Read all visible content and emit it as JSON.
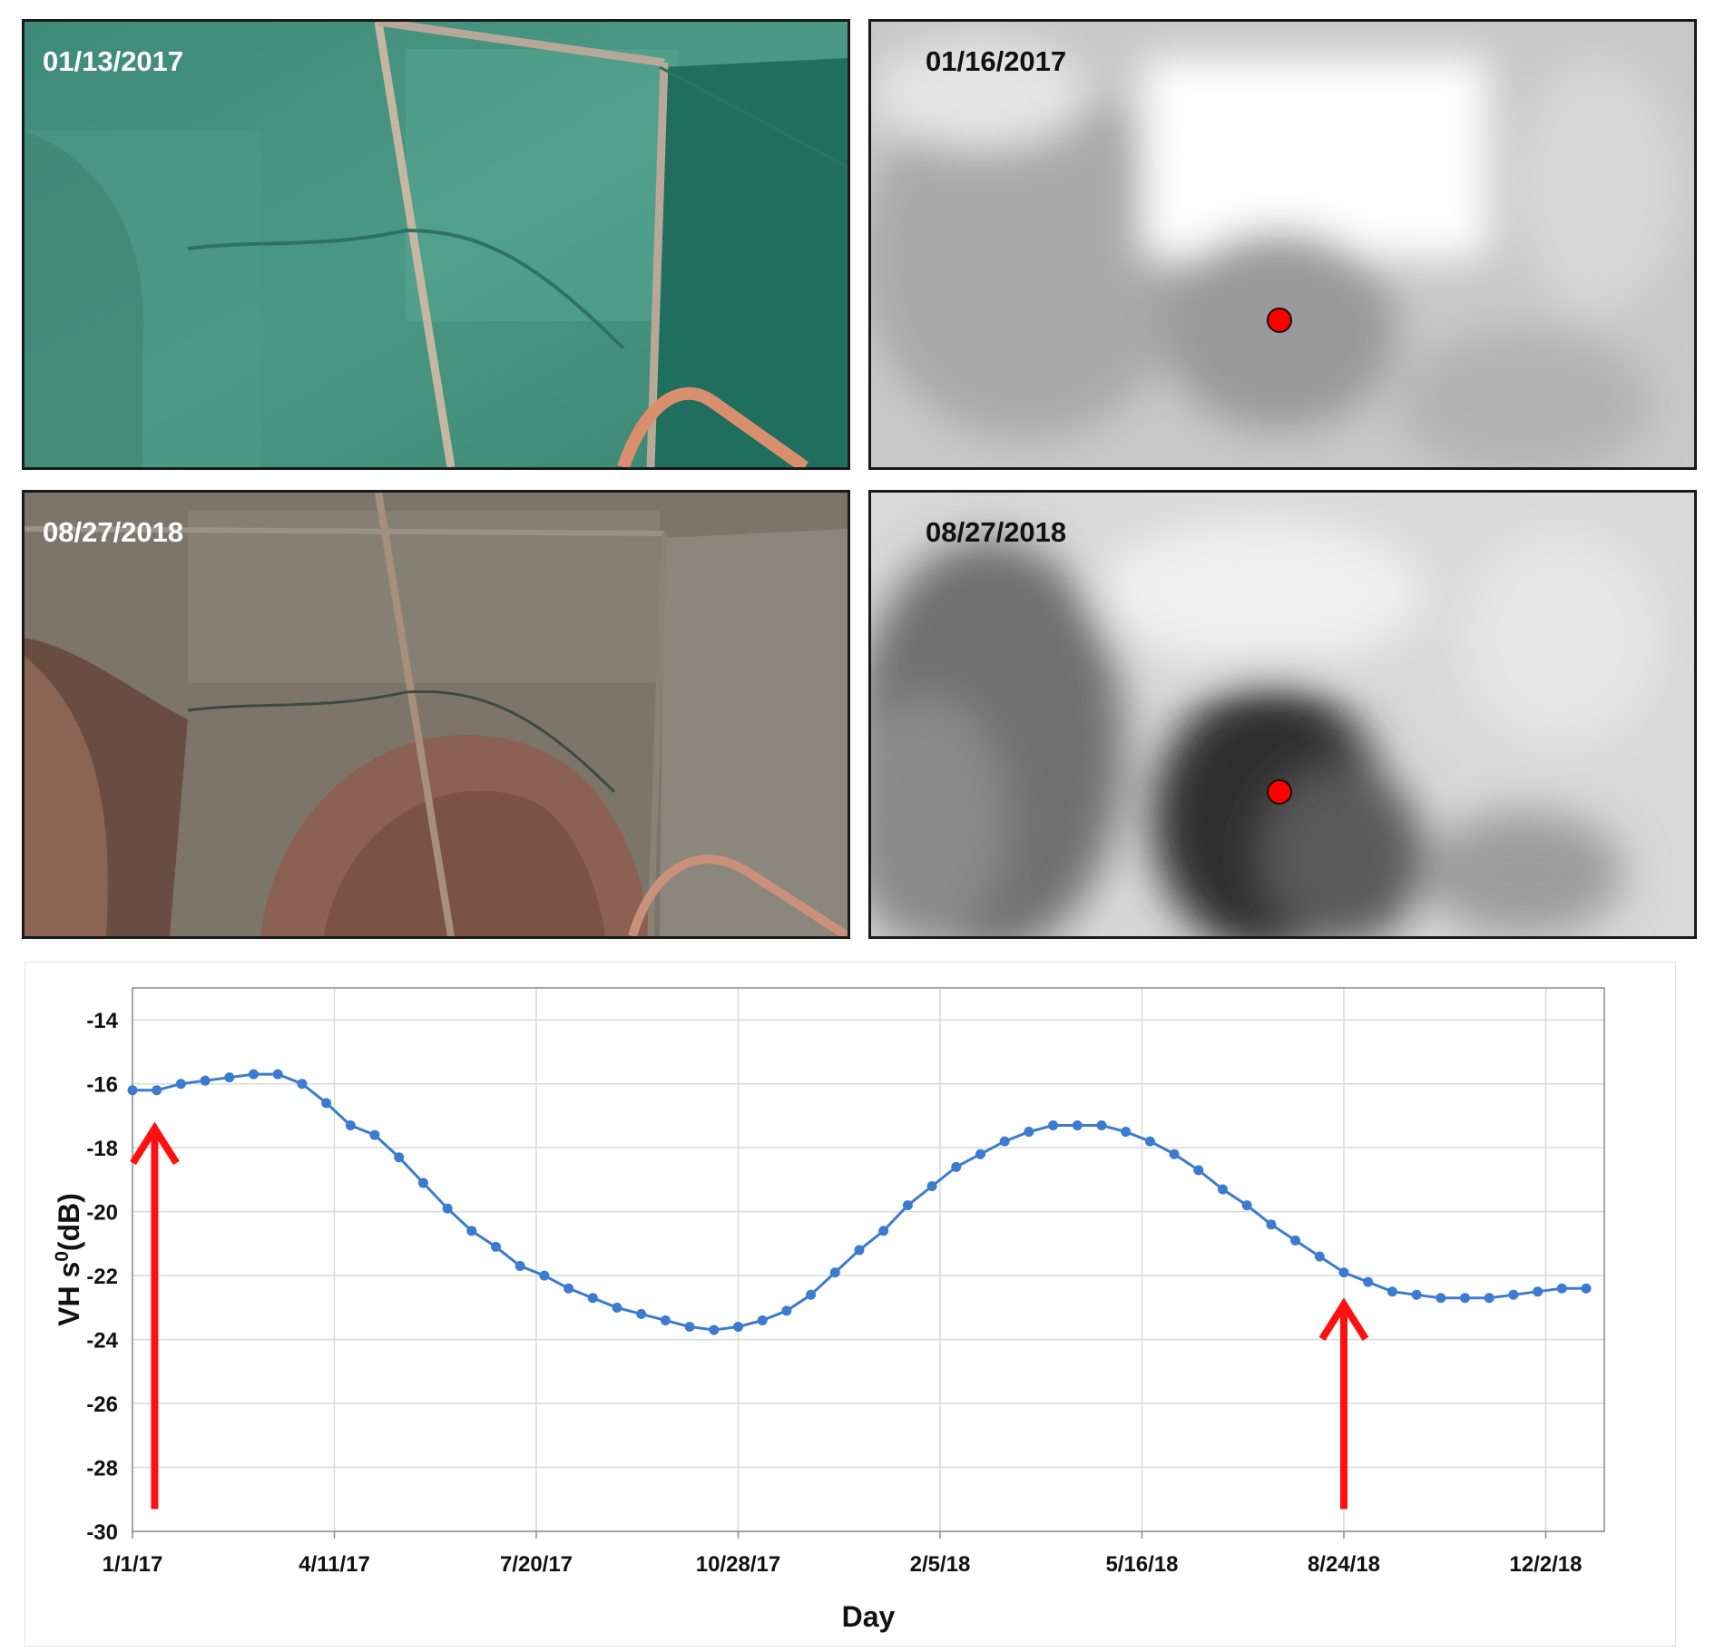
{
  "panels": {
    "optical_2017": {
      "date": "01/13/2017",
      "kind": "optical"
    },
    "sar_2017": {
      "date": "01/16/2017",
      "kind": "sar"
    },
    "optical_2018": {
      "date": "08/27/2018",
      "kind": "optical"
    },
    "sar_2018": {
      "date": "08/27/2018",
      "kind": "sar"
    }
  },
  "colors": {
    "series": "#3b7bd0",
    "arrow": "#ff1010",
    "marker": "#ff0000",
    "grid": "#d9d9d9"
  },
  "chart_data": {
    "type": "line",
    "title": "",
    "xlabel": "Day",
    "ylabel": "VH s0(dB)",
    "ylabel_base": "VH s",
    "ylabel_sup": "0",
    "ylabel_rest": "(dB)",
    "ylim": [
      -30,
      -13
    ],
    "yticks": [
      -14,
      -16,
      -18,
      -20,
      -22,
      -24,
      -26,
      -28,
      -30
    ],
    "xlim": [
      "2017-01-01",
      "2018-12-31"
    ],
    "xticks": [
      {
        "date": "2017-01-01",
        "label": "1/1/17"
      },
      {
        "date": "2017-04-11",
        "label": "4/11/17"
      },
      {
        "date": "2017-07-20",
        "label": "7/20/17"
      },
      {
        "date": "2017-10-28",
        "label": "10/28/17"
      },
      {
        "date": "2018-02-05",
        "label": "2/5/18"
      },
      {
        "date": "2018-05-16",
        "label": "5/16/18"
      },
      {
        "date": "2018-08-24",
        "label": "8/24/18"
      },
      {
        "date": "2018-12-02",
        "label": "12/2/18"
      }
    ],
    "grid": true,
    "legend": "none",
    "series": [
      {
        "x": [
          "2017-01-01",
          "2017-01-13",
          "2017-01-25",
          "2017-02-06",
          "2017-02-18",
          "2017-03-02",
          "2017-03-14",
          "2017-03-26",
          "2017-04-07",
          "2017-04-19",
          "2017-05-01",
          "2017-05-13",
          "2017-05-25",
          "2017-06-06",
          "2017-06-18",
          "2017-06-30",
          "2017-07-12",
          "2017-07-24",
          "2017-08-05",
          "2017-08-17",
          "2017-08-29",
          "2017-09-10",
          "2017-09-22",
          "2017-10-04",
          "2017-10-16",
          "2017-10-28",
          "2017-11-09",
          "2017-11-21",
          "2017-12-03",
          "2017-12-15",
          "2017-12-27",
          "2018-01-08",
          "2018-01-20",
          "2018-02-01",
          "2018-02-13",
          "2018-02-25",
          "2018-03-09",
          "2018-03-21",
          "2018-04-02",
          "2018-04-14",
          "2018-04-26",
          "2018-05-08",
          "2018-05-20",
          "2018-06-01",
          "2018-06-13",
          "2018-06-25",
          "2018-07-07",
          "2018-07-19",
          "2018-07-31",
          "2018-08-12",
          "2018-08-24",
          "2018-09-05",
          "2018-09-17",
          "2018-09-29",
          "2018-10-11",
          "2018-10-23",
          "2018-11-04",
          "2018-11-16",
          "2018-11-28",
          "2018-12-10",
          "2018-12-22"
        ],
        "y": [
          -16.2,
          -16.2,
          -16.0,
          -15.9,
          -15.8,
          -15.7,
          -15.7,
          -16.0,
          -16.6,
          -17.3,
          -17.6,
          -18.3,
          -19.1,
          -19.9,
          -20.6,
          -21.1,
          -21.7,
          -22.0,
          -22.4,
          -22.7,
          -23.0,
          -23.2,
          -23.4,
          -23.6,
          -23.7,
          -23.6,
          -23.4,
          -23.1,
          -22.6,
          -21.9,
          -21.2,
          -20.6,
          -19.8,
          -19.2,
          -18.6,
          -18.2,
          -17.8,
          -17.5,
          -17.3,
          -17.3,
          -17.3,
          -17.5,
          -17.8,
          -18.2,
          -18.7,
          -19.3,
          -19.8,
          -20.4,
          -20.9,
          -21.4,
          -21.9,
          -22.2,
          -22.5,
          -22.6,
          -22.7,
          -22.7,
          -22.7,
          -22.6,
          -22.5,
          -22.4,
          -22.4
        ]
      }
    ],
    "annotations": [
      {
        "type": "arrow",
        "x": "2017-01-12",
        "y_from": -29.3,
        "y_to": -17.4
      },
      {
        "type": "arrow",
        "x": "2018-08-24",
        "y_from": -29.3,
        "y_to": -22.9
      }
    ]
  }
}
